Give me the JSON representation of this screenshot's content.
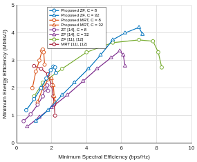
{
  "chart_data": {
    "type": "line",
    "x_label": "Minimum Spectral Efficiency (bps/Hz)",
    "y_label": "Minimum Energy Efficiency (Mbits/J)",
    "xlim": [
      0,
      10
    ],
    "xticks": [
      0,
      2,
      4,
      6,
      8,
      10
    ],
    "ylim": [
      0,
      5
    ],
    "yticks": [
      0,
      1,
      2,
      3,
      4,
      5
    ],
    "grid": true,
    "legend": "upper left",
    "series": [
      {
        "name": "Proposed ZF, C = 8",
        "color": "#0072bd",
        "marker": "circle",
        "line_style": "solid",
        "x": [
          0.55,
          1.0,
          1.4,
          1.7,
          1.95,
          2.1,
          2.2,
          2.25
        ],
        "values": [
          1.2,
          1.6,
          2.0,
          2.35,
          2.65,
          2.78,
          2.75,
          2.55
        ]
      },
      {
        "name": "Proposed ZF, C = 32",
        "color": "#0072bd",
        "marker": "triangle",
        "line_style": "solid",
        "x": [
          1.1,
          1.8,
          2.6,
          3.3,
          4.1,
          4.8,
          5.5,
          6.2,
          7.0,
          7.2
        ],
        "values": [
          0.8,
          1.2,
          1.75,
          2.2,
          2.7,
          3.2,
          3.75,
          4.0,
          4.2,
          3.95
        ]
      },
      {
        "name": "Proposed MRT, C = 8",
        "color": "#d95319",
        "marker": "circle",
        "line_style": "solid",
        "x": [
          0.9,
          1.1,
          1.3,
          1.45,
          1.5,
          1.55,
          1.6
        ],
        "values": [
          2.0,
          2.6,
          3.0,
          3.35,
          3.4,
          3.3,
          2.85
        ]
      },
      {
        "name": "Proposed MRT, C = 32",
        "color": "#d95319",
        "marker": "triangle",
        "line_style": "solid",
        "x": [
          1.2,
          1.5,
          1.8,
          2.0,
          2.1,
          2.15,
          2.2
        ],
        "values": [
          1.5,
          2.0,
          2.3,
          2.35,
          2.1,
          1.7,
          1.5
        ]
      },
      {
        "name": "ZF [14], C = 8",
        "color": "#7e2f8e",
        "marker": "circle",
        "line_style": "solid",
        "x": [
          0.4,
          0.8,
          1.2,
          1.5,
          1.6,
          1.75,
          1.8
        ],
        "values": [
          0.8,
          1.05,
          1.4,
          1.7,
          1.95,
          2.1,
          1.9
        ]
      },
      {
        "name": "ZF [14], C = 32",
        "color": "#7e2f8e",
        "marker": "triangle",
        "line_style": "solid",
        "x": [
          0.6,
          1.3,
          2.0,
          2.9,
          3.8,
          4.6,
          5.4,
          5.9,
          6.1,
          6.2
        ],
        "values": [
          0.6,
          0.95,
          1.3,
          1.75,
          2.25,
          2.7,
          3.1,
          3.35,
          3.2,
          2.8
        ]
      },
      {
        "name": "ZF [11], [12]",
        "color": "#77ac30",
        "marker": "circle",
        "line_style": "solid",
        "x": [
          1.0,
          1.5,
          2.6,
          4.0,
          5.5,
          7.0,
          7.8,
          8.1,
          8.3
        ],
        "values": [
          1.7,
          2.2,
          2.7,
          3.3,
          3.65,
          3.75,
          3.7,
          3.3,
          2.75
        ]
      },
      {
        "name": "MRT [11], [12]",
        "color": "#a2142f",
        "marker": "circle",
        "line_style": "solid",
        "x": [
          1.0,
          1.4,
          1.8,
          2.0,
          2.1,
          2.15,
          2.2
        ],
        "values": [
          2.8,
          2.7,
          2.5,
          2.1,
          1.7,
          1.4,
          1.0
        ]
      }
    ]
  }
}
